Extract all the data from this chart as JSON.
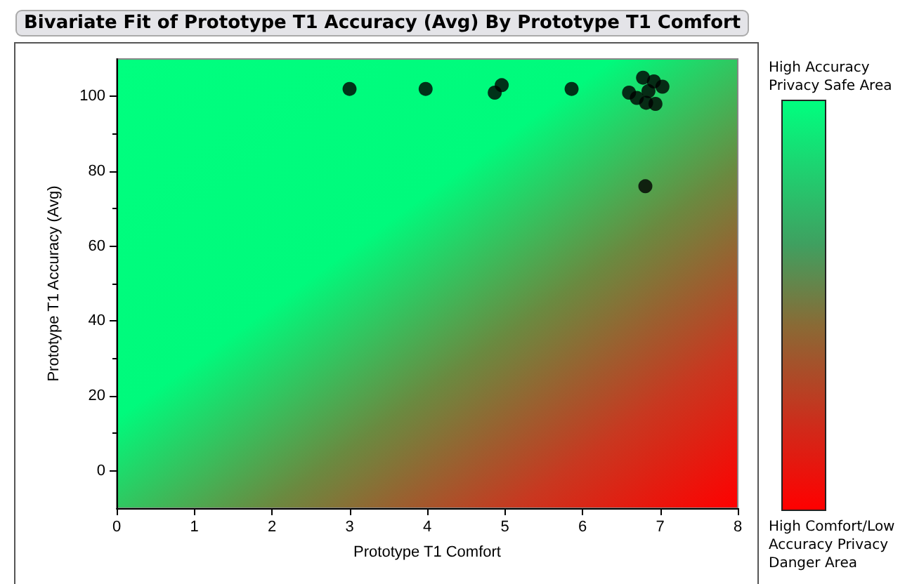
{
  "chart_data": {
    "type": "scatter",
    "title": "Bivariate Fit of Prototype T1 Accuracy (Avg) By Prototype T1 Comfort",
    "xlabel": "Prototype T1 Comfort",
    "ylabel": "Prototype T1 Accuracy (Avg)",
    "x": [
      3,
      3.98,
      4.87,
      4.96,
      5.86,
      6.6,
      6.78,
      6.92,
      7.03,
      6.7,
      6.94,
      6.82,
      6.85,
      6.81
    ],
    "values": [
      102,
      102,
      101,
      103,
      102,
      101,
      105,
      104,
      102.6,
      99.6,
      98,
      98.3,
      101.4,
      76
    ],
    "color": "#000000",
    "marker": "circle",
    "xlim": [
      0,
      8
    ],
    "xticks": [
      0,
      1,
      2,
      3,
      4,
      5,
      6,
      7,
      8
    ],
    "ylim": [
      -10,
      110
    ],
    "yticks": [
      0,
      20,
      40,
      60,
      80,
      100
    ],
    "grid": false,
    "annotations": [
      "High Accuracy Privacy Safe Area",
      "High Comfort/Low Accuracy Privacy Danger Area"
    ]
  }
}
